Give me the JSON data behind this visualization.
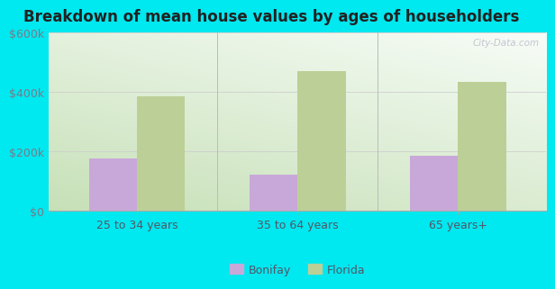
{
  "title": "Breakdown of mean house values by ages of householders",
  "categories": [
    "25 to 34 years",
    "35 to 64 years",
    "65 years+"
  ],
  "bonifay_values": [
    175000,
    120000,
    185000
  ],
  "florida_values": [
    385000,
    470000,
    435000
  ],
  "bonifay_color": "#c8a8d8",
  "florida_color": "#bccf96",
  "ylim": [
    0,
    600000
  ],
  "yticks": [
    0,
    200000,
    400000,
    600000
  ],
  "ytick_labels": [
    "$0",
    "$200k",
    "$400k",
    "$600k"
  ],
  "legend_labels": [
    "Bonifay",
    "Florida"
  ],
  "bar_width": 0.3,
  "background_outer": "#00e8f0",
  "watermark": "City-Data.com",
  "title_fontsize": 12,
  "tick_fontsize": 9,
  "legend_fontsize": 9
}
